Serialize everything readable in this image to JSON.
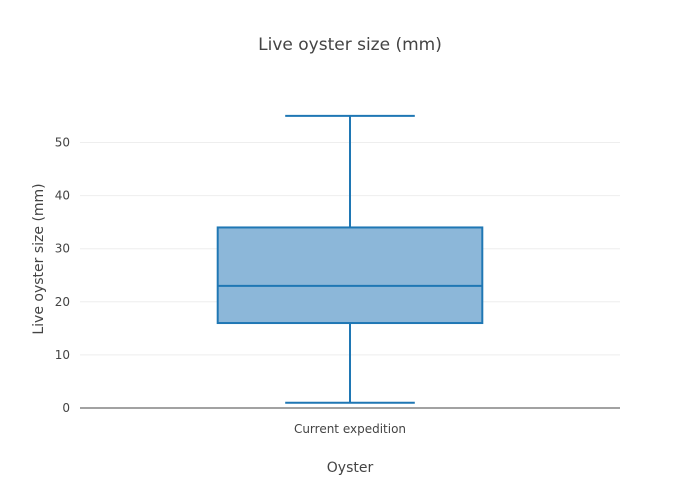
{
  "chart_data": {
    "type": "box",
    "title": "Live oyster size (mm)",
    "xlabel": "Oyster",
    "ylabel": "Live oyster size (mm)",
    "categories": [
      "Current expedition"
    ],
    "ylim": [
      0,
      58
    ],
    "yticks": [
      0,
      10,
      20,
      30,
      40,
      50
    ],
    "grid": true,
    "boxes": [
      {
        "category": "Current expedition",
        "min": 1,
        "q1": 16,
        "median": 23,
        "q3": 34,
        "max": 55
      }
    ],
    "colors": {
      "box_fill": "#8cb7d9",
      "box_line": "#1f77b4",
      "grid": "#eeeeee",
      "axis": "#444444",
      "text": "#444444"
    }
  }
}
